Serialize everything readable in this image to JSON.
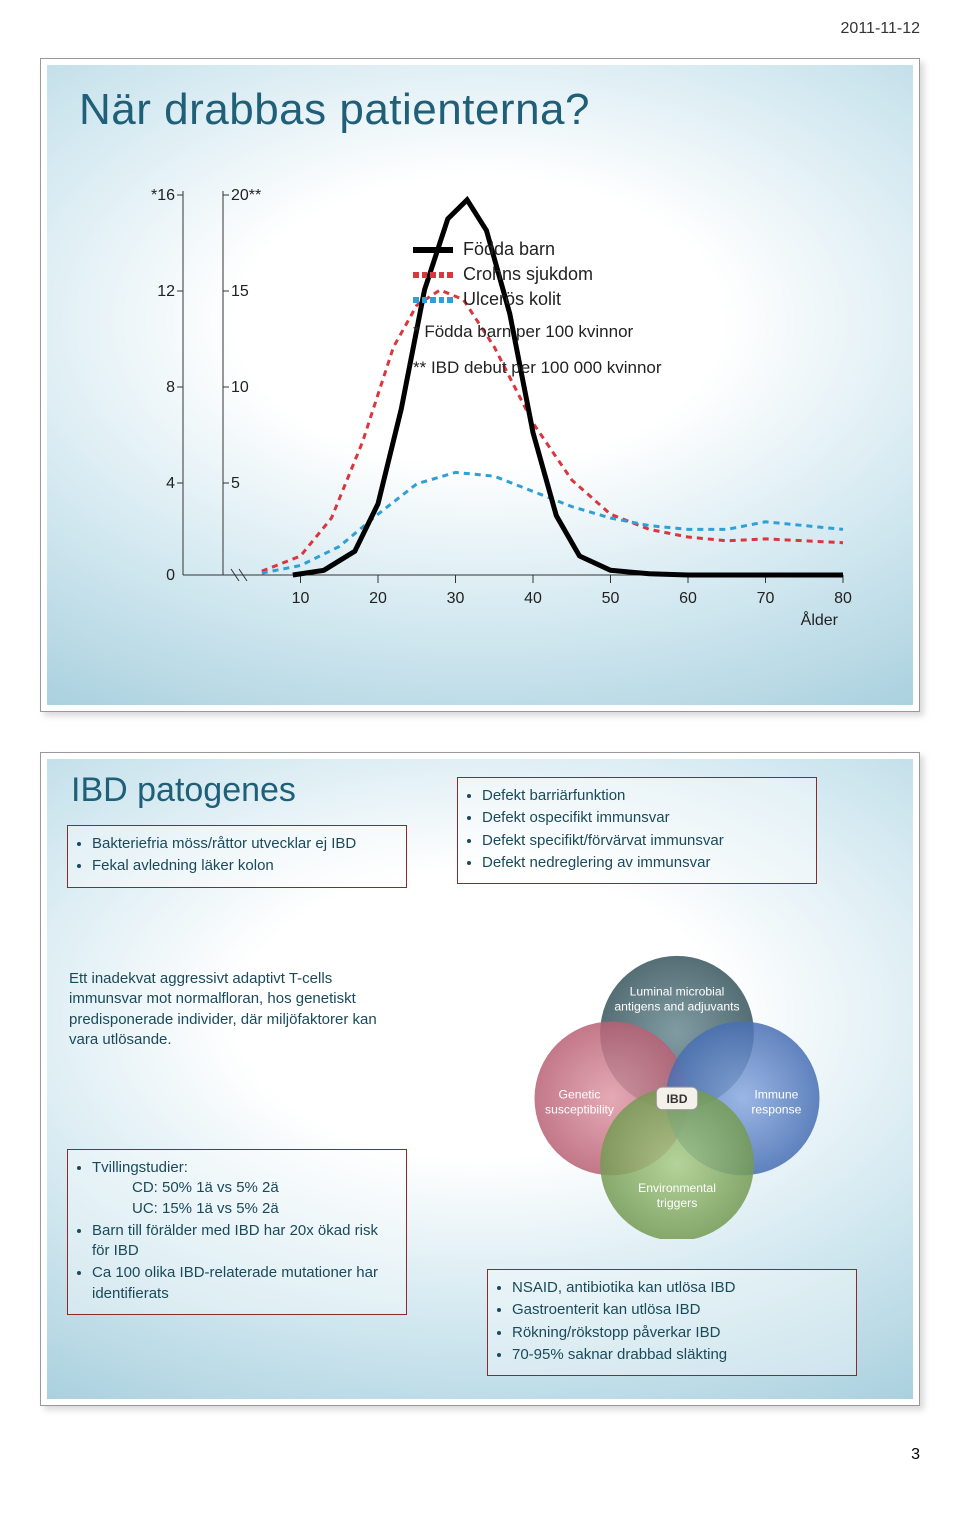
{
  "page": {
    "date": "2011-11-12",
    "footer_page": "3"
  },
  "slide1": {
    "title": "När drabbas patienterna?",
    "xlabel": "Ålder",
    "legend": {
      "items": [
        {
          "label": "Födda barn",
          "color": "#000000",
          "style": "solid"
        },
        {
          "label": "Crohns sjukdom",
          "color": "#d9363e",
          "style": "dash"
        },
        {
          "label": "Ulcerös kolit",
          "color": "#2f9fd6",
          "style": "dash"
        }
      ],
      "note1": "* Födda barn per 100 kvinnor",
      "note2": "** IBD debut per 100 000 kvinnor"
    },
    "axes": {
      "x": {
        "min": 0,
        "max": 80,
        "ticks": [
          10,
          20,
          30,
          40,
          50,
          60,
          70,
          80
        ]
      },
      "y_left": {
        "label_top": "*16",
        "ticks": [
          16,
          12,
          8,
          4,
          0
        ],
        "tick_labels": [
          "*16",
          "12",
          "8",
          "4",
          "0"
        ]
      },
      "y_right": {
        "ticks": [
          20,
          15,
          10,
          5
        ],
        "tick_labels": [
          "20**",
          "15",
          "10",
          "5"
        ]
      }
    },
    "series": {
      "fodda": {
        "color": "#000000",
        "width": 5,
        "style": "solid",
        "points": [
          [
            9,
            0
          ],
          [
            13,
            0.2
          ],
          [
            17,
            1
          ],
          [
            20,
            3
          ],
          [
            23,
            7
          ],
          [
            26,
            12
          ],
          [
            29,
            15
          ],
          [
            31.5,
            15.8
          ],
          [
            34,
            14.5
          ],
          [
            37,
            11
          ],
          [
            40,
            6
          ],
          [
            43,
            2.5
          ],
          [
            46,
            0.8
          ],
          [
            50,
            0.2
          ],
          [
            55,
            0.05
          ],
          [
            60,
            0
          ],
          [
            80,
            0
          ]
        ]
      },
      "crohns": {
        "color": "#d9363e",
        "width": 3,
        "style": "dash",
        "points": [
          [
            5,
            0.2
          ],
          [
            10,
            1
          ],
          [
            14,
            3
          ],
          [
            18,
            7
          ],
          [
            22,
            12
          ],
          [
            25,
            14.2
          ],
          [
            28,
            15
          ],
          [
            31,
            14.5
          ],
          [
            35,
            12
          ],
          [
            40,
            8
          ],
          [
            45,
            5
          ],
          [
            50,
            3.2
          ],
          [
            55,
            2.4
          ],
          [
            60,
            2
          ],
          [
            65,
            1.8
          ],
          [
            70,
            1.9
          ],
          [
            75,
            1.8
          ],
          [
            80,
            1.7
          ]
        ]
      },
      "uc": {
        "color": "#2f9fd6",
        "width": 3,
        "style": "dash",
        "points": [
          [
            5,
            0.1
          ],
          [
            10,
            0.5
          ],
          [
            15,
            1.5
          ],
          [
            20,
            3.2
          ],
          [
            25,
            4.8
          ],
          [
            30,
            5.4
          ],
          [
            35,
            5.2
          ],
          [
            40,
            4.4
          ],
          [
            45,
            3.6
          ],
          [
            50,
            3.0
          ],
          [
            55,
            2.6
          ],
          [
            60,
            2.4
          ],
          [
            65,
            2.4
          ],
          [
            70,
            2.8
          ],
          [
            75,
            2.6
          ],
          [
            80,
            2.4
          ]
        ]
      }
    }
  },
  "slide2": {
    "title": "IBD patogenes",
    "box_top_left": [
      "Bakteriefria möss/råttor utvecklar ej IBD",
      "Fekal avledning läker kolon"
    ],
    "box_top_right": [
      "Defekt barriärfunktion",
      "Defekt ospecifikt immunsvar",
      "Defekt specifikt/förvärvat immunsvar",
      "Defekt nedreglering av immunsvar"
    ],
    "para_mid_left": "Ett inadekvat aggressivt adaptivt T-cells immunsvar mot normalfloran, hos genetiskt predisponerade individer, där miljöfaktorer kan vara utlösande.",
    "box_bottom_left": {
      "lead1": "Tvillingstudier:",
      "l1": "CD: 50% 1ä vs 5% 2ä",
      "l2": "UC: 15% 1ä vs 5% 2ä",
      "l3": "Barn till förälder med IBD har 20x ökad risk för IBD",
      "l4": "Ca 100 olika IBD-relaterade mutationer har identifierats"
    },
    "box_bottom_right": [
      "NSAID, antibiotika kan utlösa IBD",
      "Gastroenterit kan utlösa IBD",
      "Rökning/rökstopp påverkar IBD",
      "70-95% saknar drabbad släkting"
    ],
    "venn": {
      "center": "IBD",
      "top": {
        "l1": "Luminal microbial",
        "l2": "antigens and adjuvants",
        "color": "#3a5a62"
      },
      "left": {
        "l1": "Genetic",
        "l2": "susceptibility",
        "color": "#c86a7a"
      },
      "right": {
        "l1": "Immune",
        "l2": "response",
        "color": "#4a7abf"
      },
      "bottom": {
        "l1": "Environmental",
        "l2": "triggers",
        "color": "#7fa860"
      }
    }
  }
}
